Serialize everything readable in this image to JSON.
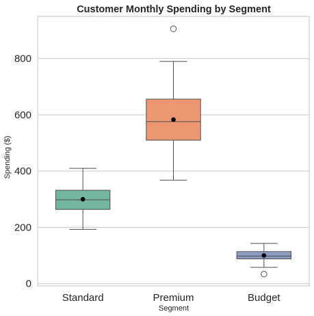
{
  "chart_data": {
    "type": "box",
    "title": "Customer Monthly Spending by Segment",
    "xlabel": "Segment",
    "ylabel": "Spending ($)",
    "ylim": [
      -8,
      950
    ],
    "yticks": [
      0,
      200,
      400,
      600,
      800
    ],
    "grid": "horizontal",
    "legend": "none",
    "categories": [
      "Standard",
      "Premium",
      "Budget"
    ],
    "boxes": [
      {
        "category": "Standard",
        "whisker_low": 193,
        "q1": 264,
        "median": 298,
        "q3": 332,
        "whisker_high": 410,
        "mean": 300,
        "outliers": [],
        "color": "#72b69f"
      },
      {
        "category": "Premium",
        "whisker_low": 368,
        "q1": 510,
        "median": 576,
        "q3": 656,
        "whisker_high": 790,
        "mean": 583,
        "outliers": [
          906
        ],
        "color": "#ec9772"
      },
      {
        "category": "Budget",
        "whisker_low": 58,
        "q1": 88,
        "median": 98,
        "q3": 114,
        "whisker_high": 143,
        "mean": 100,
        "outliers": [
          34
        ],
        "color": "#8e9cc3"
      }
    ]
  }
}
